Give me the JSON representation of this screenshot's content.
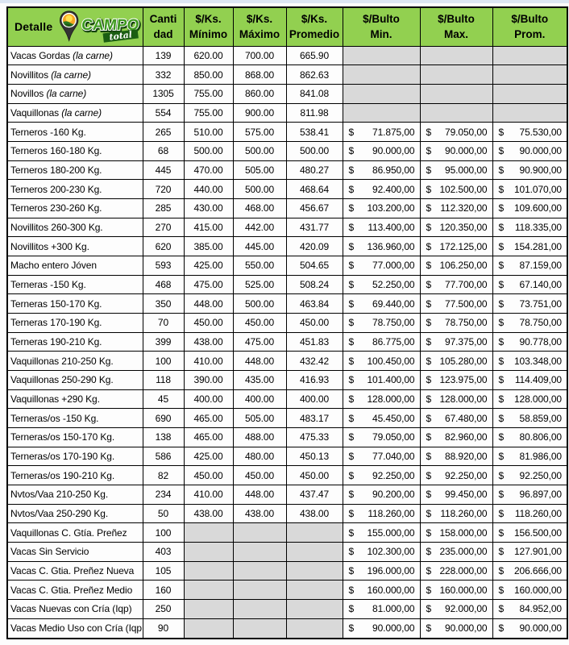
{
  "colors": {
    "header_green": "#92D050",
    "empty_gray": "#D9D9D9",
    "border_black": "#000000",
    "logo_letter_green": "#3E9A1E",
    "logo_ribbon_green": "#1B5E12",
    "logo_sun_yellow": "#FFE14D",
    "logo_sky_orange": "#F5A623",
    "logo_field_green": "#2D7A1F"
  },
  "logo": {
    "brand": "CAMPO",
    "suffix": "total"
  },
  "table": {
    "currency_symbol": "$",
    "headers": [
      {
        "line1": "Detalle",
        "line2": ""
      },
      {
        "line1": "Canti",
        "line2": "dad"
      },
      {
        "line1": "$/Ks.",
        "line2": "Mínimo"
      },
      {
        "line1": "$/Ks.",
        "line2": "Máximo"
      },
      {
        "line1": "$/Ks.",
        "line2": "Promedio"
      },
      {
        "line1": "$/Bulto",
        "line2": "Min."
      },
      {
        "line1": "$/Bulto",
        "line2": "Max."
      },
      {
        "line1": "$/Bulto",
        "line2": "Prom."
      }
    ],
    "rows": [
      {
        "detalle": "Vacas Gordas",
        "nota": "(la carne)",
        "cantidad": "139",
        "ks_min": "620.00",
        "ks_max": "700.00",
        "ks_prom": "665.90",
        "bulto_min": null,
        "bulto_max": null,
        "bulto_prom": null
      },
      {
        "detalle": "Novillitos",
        "nota": "(la carne)",
        "cantidad": "332",
        "ks_min": "850.00",
        "ks_max": "868.00",
        "ks_prom": "862.63",
        "bulto_min": null,
        "bulto_max": null,
        "bulto_prom": null
      },
      {
        "detalle": "Novillos",
        "nota": "(la carne)",
        "cantidad": "1305",
        "ks_min": "755.00",
        "ks_max": "860.00",
        "ks_prom": "841.08",
        "bulto_min": null,
        "bulto_max": null,
        "bulto_prom": null
      },
      {
        "detalle": "Vaquillonas",
        "nota": "(la carne)",
        "cantidad": "554",
        "ks_min": "755.00",
        "ks_max": "900.00",
        "ks_prom": "811.98",
        "bulto_min": null,
        "bulto_max": null,
        "bulto_prom": null
      },
      {
        "detalle": "Terneros -160 Kg.",
        "nota": "",
        "cantidad": "265",
        "ks_min": "510.00",
        "ks_max": "575.00",
        "ks_prom": "538.41",
        "bulto_min": "71.875,00",
        "bulto_max": "79.050,00",
        "bulto_prom": "75.530,00"
      },
      {
        "detalle": "Terneros 160-180 Kg.",
        "nota": "",
        "cantidad": "68",
        "ks_min": "500.00",
        "ks_max": "500.00",
        "ks_prom": "500.00",
        "bulto_min": "90.000,00",
        "bulto_max": "90.000,00",
        "bulto_prom": "90.000,00"
      },
      {
        "detalle": "Terneros 180-200 Kg.",
        "nota": "",
        "cantidad": "445",
        "ks_min": "470.00",
        "ks_max": "505.00",
        "ks_prom": "480.27",
        "bulto_min": "86.950,00",
        "bulto_max": "95.000,00",
        "bulto_prom": "90.900,00"
      },
      {
        "detalle": "Terneros 200-230 Kg.",
        "nota": "",
        "cantidad": "720",
        "ks_min": "440.00",
        "ks_max": "500.00",
        "ks_prom": "468.64",
        "bulto_min": "92.400,00",
        "bulto_max": "102.500,00",
        "bulto_prom": "101.070,00"
      },
      {
        "detalle": "Terneros 230-260 Kg.",
        "nota": "",
        "cantidad": "285",
        "ks_min": "430.00",
        "ks_max": "468.00",
        "ks_prom": "456.67",
        "bulto_min": "103.200,00",
        "bulto_max": "112.320,00",
        "bulto_prom": "109.600,00"
      },
      {
        "detalle": "Novillitos 260-300 Kg.",
        "nota": "",
        "cantidad": "270",
        "ks_min": "415.00",
        "ks_max": "442.00",
        "ks_prom": "431.77",
        "bulto_min": "113.400,00",
        "bulto_max": "120.350,00",
        "bulto_prom": "118.335,00"
      },
      {
        "detalle": "Novillitos +300 Kg.",
        "nota": "",
        "cantidad": "620",
        "ks_min": "385.00",
        "ks_max": "445.00",
        "ks_prom": "420.09",
        "bulto_min": "136.960,00",
        "bulto_max": "172.125,00",
        "bulto_prom": "154.281,00"
      },
      {
        "detalle": "Macho entero Jóven",
        "nota": "",
        "cantidad": "593",
        "ks_min": "425.00",
        "ks_max": "550.00",
        "ks_prom": "504.65",
        "bulto_min": "77.000,00",
        "bulto_max": "106.250,00",
        "bulto_prom": "87.159,00"
      },
      {
        "detalle": "Terneras -150 Kg.",
        "nota": "",
        "cantidad": "468",
        "ks_min": "475.00",
        "ks_max": "525.00",
        "ks_prom": "508.24",
        "bulto_min": "52.250,00",
        "bulto_max": "77.700,00",
        "bulto_prom": "67.140,00"
      },
      {
        "detalle": "Terneras 150-170 Kg.",
        "nota": "",
        "cantidad": "350",
        "ks_min": "448.00",
        "ks_max": "500.00",
        "ks_prom": "463.84",
        "bulto_min": "69.440,00",
        "bulto_max": "77.500,00",
        "bulto_prom": "73.751,00"
      },
      {
        "detalle": "Terneras 170-190 Kg.",
        "nota": "",
        "cantidad": "70",
        "ks_min": "450.00",
        "ks_max": "450.00",
        "ks_prom": "450.00",
        "bulto_min": "78.750,00",
        "bulto_max": "78.750,00",
        "bulto_prom": "78.750,00"
      },
      {
        "detalle": "Terneras 190-210 Kg.",
        "nota": "",
        "cantidad": "399",
        "ks_min": "438.00",
        "ks_max": "475.00",
        "ks_prom": "451.83",
        "bulto_min": "86.775,00",
        "bulto_max": "97.375,00",
        "bulto_prom": "90.778,00"
      },
      {
        "detalle": "Vaquillonas 210-250 Kg.",
        "nota": "",
        "cantidad": "100",
        "ks_min": "410.00",
        "ks_max": "448.00",
        "ks_prom": "432.42",
        "bulto_min": "100.450,00",
        "bulto_max": "105.280,00",
        "bulto_prom": "103.348,00"
      },
      {
        "detalle": "Vaquillonas 250-290 Kg.",
        "nota": "",
        "cantidad": "118",
        "ks_min": "390.00",
        "ks_max": "435.00",
        "ks_prom": "416.93",
        "bulto_min": "101.400,00",
        "bulto_max": "123.975,00",
        "bulto_prom": "114.409,00"
      },
      {
        "detalle": "Vaquillonas +290 Kg.",
        "nota": "",
        "cantidad": "45",
        "ks_min": "400.00",
        "ks_max": "400.00",
        "ks_prom": "400.00",
        "bulto_min": "128.000,00",
        "bulto_max": "128.000,00",
        "bulto_prom": "128.000,00"
      },
      {
        "detalle": "Terneras/os -150 Kg.",
        "nota": "",
        "cantidad": "690",
        "ks_min": "465.00",
        "ks_max": "505.00",
        "ks_prom": "483.17",
        "bulto_min": "45.450,00",
        "bulto_max": "67.480,00",
        "bulto_prom": "58.859,00"
      },
      {
        "detalle": "Terneras/os 150-170 Kg.",
        "nota": "",
        "cantidad": "138",
        "ks_min": "465.00",
        "ks_max": "488.00",
        "ks_prom": "475.33",
        "bulto_min": "79.050,00",
        "bulto_max": "82.960,00",
        "bulto_prom": "80.806,00"
      },
      {
        "detalle": "Terneras/os 170-190 Kg.",
        "nota": "",
        "cantidad": "586",
        "ks_min": "425.00",
        "ks_max": "480.00",
        "ks_prom": "450.13",
        "bulto_min": "77.040,00",
        "bulto_max": "88.920,00",
        "bulto_prom": "81.986,00"
      },
      {
        "detalle": "Terneras/os 190-210 Kg.",
        "nota": "",
        "cantidad": "82",
        "ks_min": "450.00",
        "ks_max": "450.00",
        "ks_prom": "450.00",
        "bulto_min": "92.250,00",
        "bulto_max": "92.250,00",
        "bulto_prom": "92.250,00"
      },
      {
        "detalle": "Nvtos/Vaa 210-250 Kg.",
        "nota": "",
        "cantidad": "234",
        "ks_min": "410.00",
        "ks_max": "448.00",
        "ks_prom": "437.47",
        "bulto_min": "90.200,00",
        "bulto_max": "99.450,00",
        "bulto_prom": "96.897,00"
      },
      {
        "detalle": "Nvtos/Vaa 250-290 Kg.",
        "nota": "",
        "cantidad": "50",
        "ks_min": "438.00",
        "ks_max": "438.00",
        "ks_prom": "438.00",
        "bulto_min": "118.260,00",
        "bulto_max": "118.260,00",
        "bulto_prom": "118.260,00"
      },
      {
        "detalle": "Vaquillonas C. Gtía. Preñez",
        "nota": "",
        "cantidad": "100",
        "ks_min": null,
        "ks_max": null,
        "ks_prom": null,
        "bulto_min": "155.000,00",
        "bulto_max": "158.000,00",
        "bulto_prom": "156.500,00"
      },
      {
        "detalle": "Vacas Sin Servicio",
        "nota": "",
        "cantidad": "403",
        "ks_min": null,
        "ks_max": null,
        "ks_prom": null,
        "bulto_min": "102.300,00",
        "bulto_max": "235.000,00",
        "bulto_prom": "127.901,00"
      },
      {
        "detalle": "Vacas C. Gtia. Preñez Nueva",
        "nota": "",
        "cantidad": "105",
        "ks_min": null,
        "ks_max": null,
        "ks_prom": null,
        "bulto_min": "196.000,00",
        "bulto_max": "228.000,00",
        "bulto_prom": "206.666,00"
      },
      {
        "detalle": "Vacas C. Gtia. Preñez Medio",
        "nota": "",
        "cantidad": "160",
        "ks_min": null,
        "ks_max": null,
        "ks_prom": null,
        "bulto_min": "160.000,00",
        "bulto_max": "160.000,00",
        "bulto_prom": "160.000,00"
      },
      {
        "detalle": "Vacas Nuevas con Cría (Iqp)",
        "nota": "",
        "cantidad": "250",
        "ks_min": null,
        "ks_max": null,
        "ks_prom": null,
        "bulto_min": "81.000,00",
        "bulto_max": "92.000,00",
        "bulto_prom": "84.952,00"
      },
      {
        "detalle": "Vacas Medio Uso con Cría (Iqp",
        "nota": "",
        "cantidad": "90",
        "ks_min": null,
        "ks_max": null,
        "ks_prom": null,
        "bulto_min": "90.000,00",
        "bulto_max": "90.000,00",
        "bulto_prom": "90.000,00"
      }
    ]
  }
}
